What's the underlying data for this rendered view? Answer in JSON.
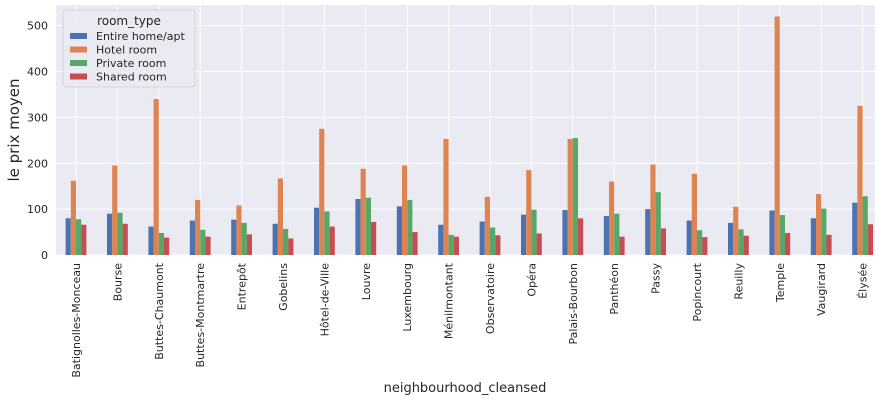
{
  "chart_data": {
    "type": "bar",
    "xlabel": "neighbourhood_cleansed",
    "ylabel": "le prix moyen",
    "ylim": [
      0,
      545
    ],
    "yticks": [
      0,
      100,
      200,
      300,
      400,
      500
    ],
    "grid": true,
    "legend": {
      "title": "room_type",
      "placement": "top-left"
    },
    "categories": [
      "Batignolles-Monceau",
      "Bourse",
      "Buttes-Chaumont",
      "Buttes-Montmartre",
      "Entrepôt",
      "Gobelins",
      "Hôtel-de-Ville",
      "Louvre",
      "Luxembourg",
      "Ménilmontant",
      "Observatoire",
      "Opéra",
      "Palais-Bourbon",
      "Panthéon",
      "Passy",
      "Popincourt",
      "Reuilly",
      "Temple",
      "Vaugirard",
      "Élysée"
    ],
    "series": [
      {
        "name": "Entire home/apt",
        "color": "#4c72b0",
        "values": [
          80,
          90,
          62,
          75,
          77,
          68,
          103,
          122,
          106,
          66,
          73,
          88,
          98,
          85,
          100,
          75,
          70,
          97,
          80,
          114
        ]
      },
      {
        "name": "Hotel room",
        "color": "#dd8452",
        "values": [
          162,
          195,
          340,
          120,
          108,
          167,
          275,
          188,
          195,
          253,
          127,
          185,
          253,
          160,
          197,
          177,
          105,
          520,
          133,
          325
        ]
      },
      {
        "name": "Private room",
        "color": "#55a868",
        "values": [
          78,
          92,
          48,
          55,
          70,
          57,
          95,
          125,
          120,
          44,
          60,
          99,
          255,
          90,
          137,
          54,
          56,
          87,
          101,
          128
        ]
      },
      {
        "name": "Shared room",
        "color": "#c44e52",
        "values": [
          66,
          68,
          38,
          40,
          45,
          36,
          62,
          72,
          50,
          40,
          43,
          47,
          80,
          40,
          58,
          39,
          42,
          48,
          44,
          67
        ]
      }
    ]
  }
}
